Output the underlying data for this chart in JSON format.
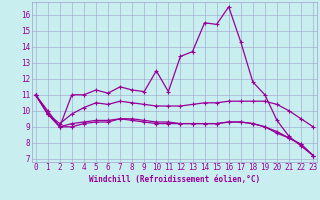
{
  "xlabel": "Windchill (Refroidissement éolien,°C)",
  "bg_color": "#c8eef0",
  "line_color": "#990099",
  "grid_color": "#a0a0cc",
  "x_ticks": [
    0,
    1,
    2,
    3,
    4,
    5,
    6,
    7,
    8,
    9,
    10,
    11,
    12,
    13,
    14,
    15,
    16,
    17,
    18,
    19,
    20,
    21,
    22,
    23
  ],
  "y_ticks": [
    7,
    8,
    9,
    10,
    11,
    12,
    13,
    14,
    15,
    16
  ],
  "ylim": [
    6.8,
    16.8
  ],
  "xlim": [
    -0.3,
    23.3
  ],
  "series1": [
    11.0,
    9.8,
    9.0,
    11.0,
    11.0,
    11.3,
    11.1,
    11.5,
    11.3,
    11.2,
    12.5,
    11.2,
    13.4,
    13.7,
    15.5,
    15.4,
    16.5,
    14.3,
    11.8,
    11.0,
    9.4,
    8.4,
    7.8,
    7.2
  ],
  "series2": [
    11.0,
    9.8,
    9.2,
    9.8,
    10.2,
    10.5,
    10.4,
    10.6,
    10.5,
    10.4,
    10.3,
    10.3,
    10.3,
    10.4,
    10.5,
    10.5,
    10.6,
    10.6,
    10.6,
    10.6,
    10.4,
    10.0,
    9.5,
    9.0
  ],
  "series3": [
    11.0,
    10.0,
    9.0,
    9.2,
    9.3,
    9.4,
    9.4,
    9.5,
    9.5,
    9.4,
    9.3,
    9.3,
    9.2,
    9.2,
    9.2,
    9.2,
    9.3,
    9.3,
    9.2,
    9.0,
    8.6,
    8.3,
    7.9,
    7.2
  ],
  "series4": [
    11.0,
    9.8,
    9.0,
    9.0,
    9.2,
    9.3,
    9.3,
    9.5,
    9.4,
    9.3,
    9.2,
    9.2,
    9.2,
    9.2,
    9.2,
    9.2,
    9.3,
    9.3,
    9.2,
    9.0,
    8.7,
    8.3,
    7.9,
    7.2
  ],
  "tick_fontsize": 5.5,
  "xlabel_fontsize": 5.5,
  "marker": "+",
  "markersize": 3.5,
  "linewidth": 0.9
}
